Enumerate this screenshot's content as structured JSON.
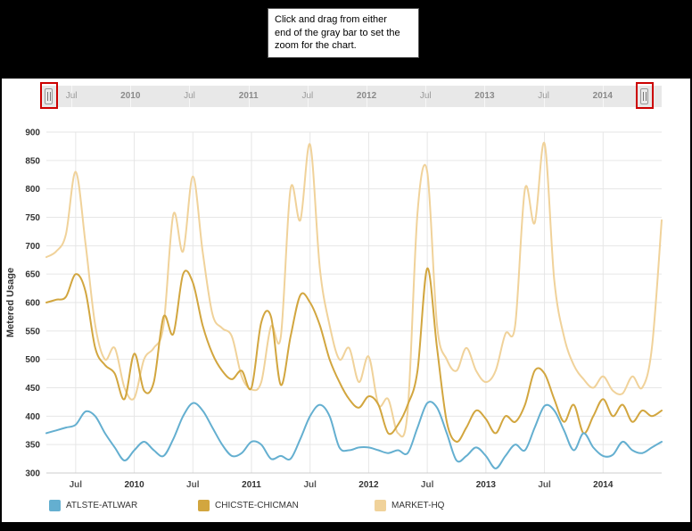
{
  "callout": {
    "text": "Click and drag from either\nend of the gray bar to set the\nzoom for the chart."
  },
  "range_selector": {
    "tick_labels": [
      "Jul",
      "2010",
      "Jul",
      "2011",
      "Jul",
      "2012",
      "Jul",
      "2013",
      "Jul",
      "2014"
    ]
  },
  "annotations": {
    "highlight_color": "#cc0000"
  },
  "chart_data": {
    "type": "line",
    "title": "",
    "xlabel": "",
    "ylabel": "Metered Usage",
    "ylim": [
      300,
      900
    ],
    "ytick_step": 50,
    "grid": true,
    "legend_position": "bottom",
    "x_start": "2009-04",
    "x_frequency": "monthly",
    "x_ticks": [
      {
        "month_index": 3,
        "label": "Jul"
      },
      {
        "month_index": 9,
        "label": "2010"
      },
      {
        "month_index": 15,
        "label": "Jul"
      },
      {
        "month_index": 21,
        "label": "2011"
      },
      {
        "month_index": 27,
        "label": "Jul"
      },
      {
        "month_index": 33,
        "label": "2012"
      },
      {
        "month_index": 39,
        "label": "Jul"
      },
      {
        "month_index": 45,
        "label": "2013"
      },
      {
        "month_index": 51,
        "label": "Jul"
      },
      {
        "month_index": 57,
        "label": "2014"
      }
    ],
    "series": [
      {
        "name": "ATLSTE-ATLWAR",
        "color": "#64afd0",
        "values": [
          370,
          375,
          380,
          385,
          408,
          400,
          370,
          345,
          322,
          340,
          355,
          340,
          330,
          360,
          400,
          423,
          410,
          380,
          350,
          330,
          335,
          355,
          350,
          325,
          330,
          325,
          360,
          400,
          420,
          400,
          345,
          340,
          345,
          345,
          340,
          335,
          340,
          335,
          380,
          423,
          415,
          370,
          322,
          330,
          345,
          330,
          308,
          330,
          350,
          340,
          380,
          418,
          410,
          375,
          340,
          370,
          345,
          330,
          332,
          355,
          340,
          335,
          345,
          355
        ]
      },
      {
        "name": "CHICSTE-CHICMAN",
        "color": "#d2a63f",
        "values": [
          600,
          605,
          610,
          650,
          620,
          520,
          490,
          475,
          430,
          510,
          445,
          460,
          575,
          545,
          650,
          635,
          560,
          510,
          480,
          465,
          480,
          450,
          565,
          575,
          455,
          540,
          613,
          600,
          560,
          500,
          460,
          430,
          415,
          435,
          420,
          370,
          385,
          420,
          480,
          660,
          520,
          390,
          355,
          380,
          410,
          395,
          370,
          400,
          390,
          420,
          480,
          475,
          430,
          390,
          420,
          370,
          400,
          430,
          400,
          420,
          390,
          410,
          400,
          410
        ]
      },
      {
        "name": "MARKET-HQ",
        "color": "#f0d29a",
        "values": [
          680,
          690,
          720,
          830,
          705,
          560,
          500,
          520,
          450,
          432,
          500,
          520,
          560,
          755,
          690,
          822,
          690,
          580,
          555,
          540,
          470,
          447,
          460,
          558,
          540,
          800,
          745,
          878,
          660,
          560,
          500,
          520,
          460,
          505,
          420,
          430,
          370,
          410,
          758,
          830,
          560,
          500,
          480,
          520,
          480,
          460,
          480,
          545,
          560,
          800,
          740,
          880,
          640,
          540,
          490,
          465,
          450,
          470,
          445,
          440,
          470,
          450,
          520,
          745
        ]
      }
    ]
  },
  "legend": {
    "items": [
      {
        "label": "ATLSTE-ATLWAR",
        "color": "#64afd0"
      },
      {
        "label": "CHICSTE-CHICMAN",
        "color": "#d2a63f"
      },
      {
        "label": "MARKET-HQ",
        "color": "#f0d29a"
      }
    ]
  }
}
